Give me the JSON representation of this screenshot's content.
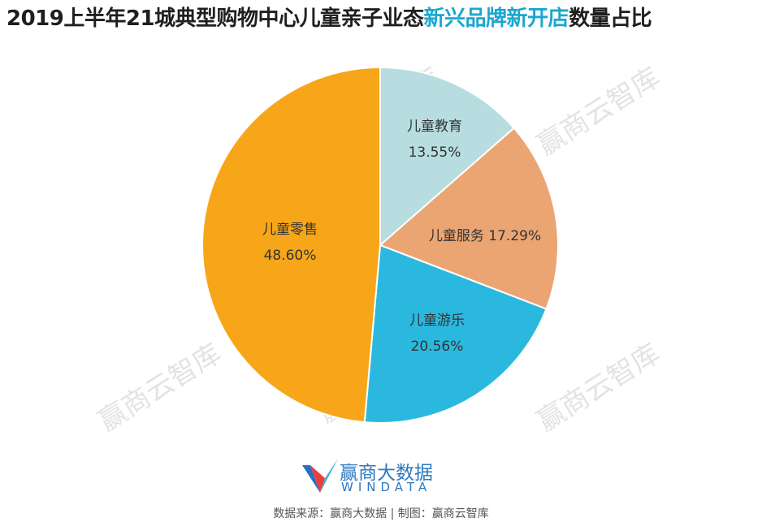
{
  "title": {
    "prefix": "2019上半年21城典型购物中心儿童亲子业态",
    "highlight": "新兴品牌新开店",
    "suffix": "数量占比",
    "highlight_color": "#1aa7cf"
  },
  "chart_data": {
    "type": "pie",
    "start_angle_deg": 0,
    "direction": "clockwise",
    "slices": [
      {
        "label": "儿童教育",
        "value": 13.55,
        "value_text": "13.55%",
        "color": "#b7dde0"
      },
      {
        "label": "儿童服务",
        "value": 17.29,
        "value_text": "17.29%",
        "color": "#eba572"
      },
      {
        "label": "儿童游乐",
        "value": 20.56,
        "value_text": "20.56%",
        "color": "#2bb8df"
      },
      {
        "label": "儿童零售",
        "value": 48.6,
        "value_text": "48.60%",
        "color": "#f6a618"
      }
    ]
  },
  "watermark": "赢商云智库",
  "logo": {
    "name": "赢商大数据",
    "english": "WINDATA"
  },
  "source": "数据来源：赢商大数据 | 制图：赢商云智库"
}
